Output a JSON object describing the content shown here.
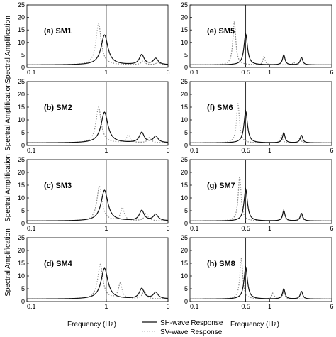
{
  "chart_data": {
    "type": "line",
    "x_scale": "log",
    "xlim_left": [
      0.1,
      6
    ],
    "xlim_right": [
      0.1,
      6
    ],
    "ylim": [
      0,
      25
    ],
    "y_ticks": [
      0,
      5,
      10,
      15,
      20,
      25
    ],
    "x_ticks_left": [
      0.1,
      1,
      6
    ],
    "x_ticks_right": [
      0.1,
      0.5,
      1,
      6
    ],
    "xlabel": "Frequency (Hz)",
    "ylabel": "Spectral Amplification",
    "legend": {
      "placement": "bottom-center",
      "entries": [
        {
          "name": "SH-wave Response",
          "style": "solid"
        },
        {
          "name": "SV-wave Response",
          "style": "dotted"
        }
      ]
    },
    "colors": {
      "sh": "#111111",
      "sv": "#888888"
    },
    "panels": [
      {
        "id": "a",
        "label": "(a)",
        "name": "SM1",
        "column": "left",
        "ref_line": 1.0,
        "sh": {
          "f0": 0.95,
          "peak": 13,
          "g": 0.12,
          "f2": 2.8,
          "p2": 4,
          "f3": 4.2,
          "p3": 2.5
        },
        "sv": {
          "f0": 0.8,
          "peak": 17.5,
          "g": 0.09,
          "f2": 2.9,
          "p2": 1.5,
          "f3": 4.5,
          "p3": 1.0
        }
      },
      {
        "id": "b",
        "label": "(b)",
        "name": "SM2",
        "column": "left",
        "ref_line": 1.0,
        "sh": {
          "f0": 0.95,
          "peak": 13,
          "g": 0.12,
          "f2": 2.8,
          "p2": 4,
          "f3": 4.2,
          "p3": 2.5
        },
        "sv": {
          "f0": 0.8,
          "peak": 15,
          "g": 0.09,
          "f2": 1.9,
          "p2": 3,
          "f3": 3.5,
          "p3": 2.0
        }
      },
      {
        "id": "c",
        "label": "(c)",
        "name": "SM3",
        "column": "left",
        "ref_line": 1.0,
        "sh": {
          "f0": 0.95,
          "peak": 13,
          "g": 0.12,
          "f2": 2.8,
          "p2": 4,
          "f3": 4.2,
          "p3": 2.5
        },
        "sv": {
          "f0": 0.82,
          "peak": 14.5,
          "g": 0.09,
          "f2": 1.6,
          "p2": 5,
          "f3": 3.2,
          "p3": 3.0
        }
      },
      {
        "id": "d",
        "label": "(d)",
        "name": "SM4",
        "column": "left",
        "ref_line": 1.0,
        "sh": {
          "f0": 0.95,
          "peak": 13,
          "g": 0.12,
          "f2": 2.8,
          "p2": 4,
          "f3": 4.2,
          "p3": 2.5
        },
        "sv": {
          "f0": 0.84,
          "peak": 14.5,
          "g": 0.09,
          "f2": 1.5,
          "p2": 6,
          "f3": 3.0,
          "p3": 3.0
        }
      },
      {
        "id": "e",
        "label": "(e)",
        "name": "SM5",
        "column": "right",
        "ref_line": 0.5,
        "sh": {
          "f0": 0.5,
          "peak": 13.5,
          "g": 0.06,
          "f2": 1.5,
          "p2": 4,
          "f3": 2.5,
          "p3": 3.0
        },
        "sv": {
          "f0": 0.36,
          "peak": 18.5,
          "g": 0.05,
          "f2": 0.85,
          "p2": 3.5,
          "f3": 2.0,
          "p3": 1.0
        }
      },
      {
        "id": "f",
        "label": "(f)",
        "name": "SM6",
        "column": "right",
        "ref_line": 0.5,
        "sh": {
          "f0": 0.5,
          "peak": 13.5,
          "g": 0.06,
          "f2": 1.5,
          "p2": 4,
          "f3": 2.5,
          "p3": 3.0
        },
        "sv": {
          "f0": 0.4,
          "peak": 16.5,
          "g": 0.05,
          "f2": 1.4,
          "p2": 3.0,
          "f3": 2.4,
          "p3": 2.0
        }
      },
      {
        "id": "g",
        "label": "(g)",
        "name": "SM7",
        "column": "right",
        "ref_line": 0.5,
        "sh": {
          "f0": 0.5,
          "peak": 13.5,
          "g": 0.06,
          "f2": 1.5,
          "p2": 4,
          "f3": 2.5,
          "p3": 3.0
        },
        "sv": {
          "f0": 0.42,
          "peak": 18.5,
          "g": 0.05,
          "f2": 1.5,
          "p2": 4.5,
          "f3": 2.5,
          "p3": 2.5
        }
      },
      {
        "id": "h",
        "label": "(h)",
        "name": "SM8",
        "column": "right",
        "ref_line": 0.5,
        "sh": {
          "f0": 0.5,
          "peak": 13.5,
          "g": 0.06,
          "f2": 1.5,
          "p2": 4,
          "f3": 2.5,
          "p3": 3.0
        },
        "sv": {
          "f0": 0.44,
          "peak": 17,
          "g": 0.05,
          "f2": 1.1,
          "p2": 2.5,
          "f3": 1.5,
          "p3": 3.0
        }
      }
    ]
  }
}
